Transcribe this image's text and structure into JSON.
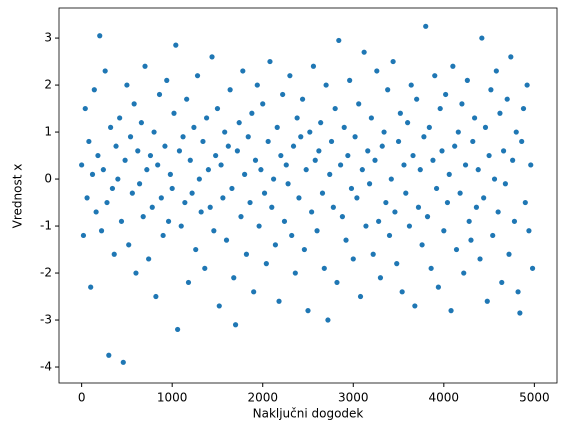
{
  "chart_data": {
    "type": "scatter",
    "xlabel": "Naključni dogodek",
    "ylabel": "Vrednost x",
    "color": "#1f77b4",
    "xlim": [
      -250,
      5250
    ],
    "ylim": [
      -4.34,
      3.64
    ],
    "xticks": [
      0,
      1000,
      2000,
      3000,
      4000,
      5000
    ],
    "yticks": [
      -4,
      -3,
      -2,
      -1,
      0,
      1,
      2,
      3
    ],
    "series": [
      {
        "x": [
          0,
          20,
          40,
          60,
          80,
          100,
          120,
          140,
          160,
          180,
          200,
          220,
          240,
          260,
          280,
          300,
          320,
          340,
          360,
          380,
          400,
          420,
          440,
          460,
          480,
          500,
          520,
          540,
          560,
          580,
          600,
          620,
          640,
          660,
          680,
          700,
          720,
          740,
          760,
          780,
          800,
          820,
          840,
          860,
          880,
          900,
          920,
          940,
          960,
          980,
          1000,
          1020,
          1040,
          1060,
          1080,
          1100,
          1120,
          1140,
          1160,
          1180,
          1200,
          1220,
          1240,
          1260,
          1280,
          1300,
          1320,
          1340,
          1360,
          1380,
          1400,
          1420,
          1440,
          1460,
          1480,
          1500,
          1520,
          1540,
          1560,
          1580,
          1600,
          1620,
          1640,
          1660,
          1680,
          1700,
          1720,
          1740,
          1760,
          1780,
          1800,
          1820,
          1840,
          1860,
          1880,
          1900,
          1920,
          1940,
          1960,
          1980,
          2000,
          2020,
          2040,
          2060,
          2080,
          2100,
          2120,
          2140,
          2160,
          2180,
          2200,
          2220,
          2240,
          2260,
          2280,
          2300,
          2320,
          2340,
          2360,
          2380,
          2400,
          2420,
          2440,
          2460,
          2480,
          2500,
          2520,
          2540,
          2560,
          2580,
          2600,
          2620,
          2640,
          2660,
          2680,
          2700,
          2720,
          2740,
          2760,
          2780,
          2800,
          2820,
          2840,
          2860,
          2880,
          2900,
          2920,
          2940,
          2960,
          2980,
          3000,
          3020,
          3040,
          3060,
          3080,
          3100,
          3120,
          3140,
          3160,
          3180,
          3200,
          3220,
          3240,
          3260,
          3280,
          3300,
          3320,
          3340,
          3360,
          3380,
          3400,
          3420,
          3440,
          3460,
          3480,
          3500,
          3520,
          3540,
          3560,
          3580,
          3600,
          3620,
          3640,
          3660,
          3680,
          3700,
          3720,
          3740,
          3760,
          3780,
          3800,
          3820,
          3840,
          3860,
          3880,
          3900,
          3920,
          3940,
          3960,
          3980,
          4000,
          4020,
          4040,
          4060,
          4080,
          4100,
          4120,
          4140,
          4160,
          4180,
          4200,
          4220,
          4240,
          4260,
          4280,
          4300,
          4320,
          4340,
          4360,
          4380,
          4400,
          4420,
          4440,
          4460,
          4480,
          4500,
          4520,
          4540,
          4560,
          4580,
          4600,
          4620,
          4640,
          4660,
          4680,
          4700,
          4720,
          4740,
          4760,
          4780,
          4800,
          4820,
          4840,
          4860,
          4880,
          4900,
          4920,
          4940,
          4960,
          4980
        ],
        "values": [
          0.3,
          -1.2,
          1.5,
          -0.4,
          0.8,
          -2.3,
          0.1,
          1.9,
          -0.7,
          0.5,
          3.05,
          -1.1,
          0.2,
          2.3,
          -0.5,
          -3.75,
          1.1,
          -0.2,
          -1.6,
          0.7,
          0.0,
          1.3,
          -0.9,
          -3.9,
          0.4,
          2.0,
          -1.4,
          0.9,
          -0.3,
          1.6,
          -2.0,
          0.6,
          -0.1,
          1.2,
          -0.8,
          2.4,
          0.2,
          -1.7,
          0.5,
          -0.6,
          1.0,
          -2.5,
          0.3,
          1.8,
          -0.4,
          -1.2,
          0.7,
          2.1,
          -0.9,
          0.1,
          -0.2,
          1.4,
          2.85,
          -3.2,
          0.6,
          -1.0,
          0.9,
          -0.5,
          1.7,
          -2.2,
          0.4,
          -0.3,
          1.1,
          -1.5,
          2.2,
          0.0,
          -0.7,
          0.8,
          -1.9,
          1.3,
          0.2,
          -0.6,
          2.6,
          -1.1,
          0.5,
          1.5,
          -2.7,
          0.3,
          -0.4,
          1.0,
          -1.3,
          0.7,
          1.9,
          -0.2,
          -2.1,
          -3.1,
          0.6,
          1.2,
          -0.8,
          2.3,
          0.1,
          -1.6,
          0.9,
          -0.5,
          1.4,
          -2.4,
          0.4,
          2.0,
          -1.0,
          0.2,
          1.6,
          -0.3,
          -1.8,
          0.8,
          2.5,
          -0.6,
          0.0,
          -1.4,
          1.1,
          -2.6,
          0.5,
          1.8,
          -0.9,
          0.3,
          -0.1,
          2.2,
          -1.2,
          0.7,
          -2.0,
          1.3,
          -0.4,
          0.9,
          1.7,
          -1.5,
          0.2,
          -2.8,
          1.0,
          -0.7,
          2.4,
          0.4,
          -1.1,
          0.6,
          1.2,
          -0.3,
          -1.9,
          2.0,
          -3.0,
          0.1,
          0.8,
          -0.6,
          1.5,
          -2.2,
          2.95,
          0.3,
          -0.8,
          1.1,
          -1.3,
          0.5,
          2.1,
          -0.2,
          -1.7,
          0.9,
          -0.4,
          1.6,
          -2.5,
          0.2,
          2.7,
          -1.0,
          0.6,
          -0.1,
          1.3,
          -1.6,
          0.4,
          2.3,
          -0.9,
          -2.1,
          0.7,
          1.0,
          -0.5,
          1.9,
          -1.2,
          0.0,
          2.5,
          -0.7,
          -1.8,
          0.8,
          1.4,
          -2.4,
          0.3,
          -0.3,
          1.2,
          -1.0,
          2.0,
          0.5,
          -2.7,
          1.7,
          -0.6,
          0.2,
          -1.4,
          0.9,
          3.25,
          -0.8,
          1.1,
          -1.9,
          0.4,
          2.2,
          -0.2,
          -2.3,
          1.5,
          0.6,
          -1.1,
          1.8,
          -0.5,
          0.1,
          -2.8,
          2.4,
          0.7,
          -1.5,
          1.0,
          -0.3,
          1.6,
          -2.0,
          0.3,
          2.1,
          -0.9,
          -1.3,
          0.8,
          1.3,
          -0.6,
          0.2,
          -1.7,
          3.0,
          -0.4,
          1.1,
          -2.6,
          0.5,
          1.9,
          -1.2,
          0.0,
          2.3,
          -0.7,
          1.4,
          -2.2,
          0.6,
          -0.1,
          1.7,
          -1.6,
          2.6,
          0.4,
          -0.9,
          1.0,
          -2.4,
          -2.85,
          0.8,
          1.5,
          -0.5,
          2.0,
          -1.1,
          0.3,
          -1.9
        ]
      }
    ]
  }
}
